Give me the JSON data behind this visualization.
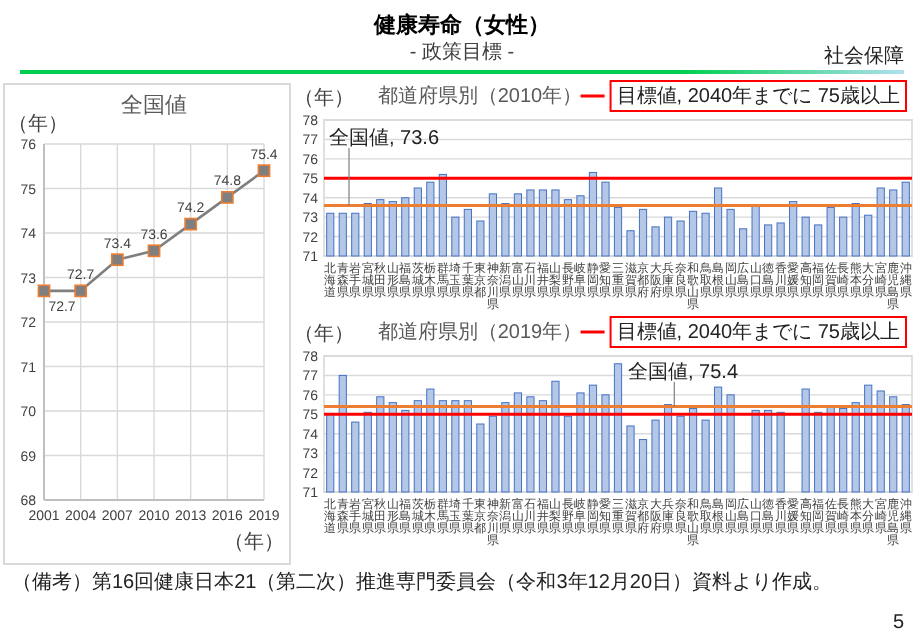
{
  "chart_data": [
    {
      "type": "other",
      "title": "健康寿命（女性）",
      "subtitle": "- 政策目標 -",
      "annotations": [
        "社会保障",
        "（備考）第16回健康日本21（第二次）推進専門委員会（令和3年12月20日）資料より作成。",
        "5"
      ]
    },
    {
      "type": "line",
      "title": "全国値",
      "xlabel": "（年）",
      "ylabel": "（年）",
      "x": [
        2001,
        2004,
        2007,
        2010,
        2013,
        2016,
        2019
      ],
      "xlim": [
        2001,
        2019
      ],
      "xticks": [
        2001,
        2004,
        2007,
        2010,
        2013,
        2016,
        2019
      ],
      "ylim": [
        68,
        76
      ],
      "yticks": [
        68,
        69,
        70,
        71,
        72,
        73,
        74,
        75,
        76
      ],
      "grid": true,
      "marker": "square",
      "data_labels": true,
      "series": [
        {
          "color": "#7f7f7f",
          "values": [
            72.7,
            72.7,
            73.4,
            73.6,
            74.2,
            74.8,
            75.4
          ]
        }
      ]
    },
    {
      "type": "bar",
      "title": "都道府県別（2010年）",
      "ylabel": "（年）",
      "categories": [
        "北海道",
        "青森県",
        "岩手県",
        "宮城県",
        "秋田県",
        "山形県",
        "福島県",
        "茨城県",
        "栃木県",
        "群馬県",
        "埼玉県",
        "千葉県",
        "東京都",
        "神奈川県",
        "新潟県",
        "富山県",
        "石川県",
        "福井県",
        "山梨県",
        "長野県",
        "岐阜県",
        "静岡県",
        "愛知県",
        "三重県",
        "滋賀県",
        "京都府",
        "大阪府",
        "兵庫県",
        "奈良県",
        "和歌山県",
        "鳥取県",
        "島根県",
        "岡山県",
        "広島県",
        "山口県",
        "徳島県",
        "香川県",
        "愛媛県",
        "高知県",
        "福岡県",
        "佐賀県",
        "長崎県",
        "熊本県",
        "大分県",
        "宮崎県",
        "鹿児島県",
        "沖縄県"
      ],
      "ylim": [
        71,
        78
      ],
      "yticks": [
        71,
        72,
        73,
        74,
        75,
        76,
        77,
        78
      ],
      "grid": "y",
      "series": [
        {
          "color": "#b4c7e7",
          "values": [
            73.2,
            73.2,
            73.2,
            73.7,
            73.9,
            73.8,
            74.0,
            74.5,
            74.8,
            75.2,
            73.0,
            73.4,
            72.8,
            74.2,
            73.7,
            74.2,
            74.4,
            74.4,
            74.4,
            73.9,
            74.1,
            75.3,
            74.8,
            73.5,
            72.3,
            73.4,
            72.5,
            73.0,
            72.8,
            73.3,
            73.2,
            74.5,
            73.4,
            72.4,
            73.6,
            72.6,
            72.7,
            73.8,
            73.0,
            72.6,
            73.5,
            73.0,
            73.7,
            73.1,
            74.5,
            74.4,
            74.8
          ]
        }
      ],
      "ref_lines": [
        {
          "axis": "y",
          "value": 75,
          "label": "目標値, 2040年までに 75歳以上",
          "color": "#ff0000"
        },
        {
          "axis": "y",
          "value": 73.6,
          "label": "全国値, 73.6",
          "color": "#ed7d31"
        }
      ]
    },
    {
      "type": "bar",
      "title": "都道府県別（2019年）",
      "ylabel": "（年）",
      "categories": [
        "北海道",
        "青森県",
        "岩手県",
        "宮城県",
        "秋田県",
        "山形県",
        "福島県",
        "茨城県",
        "栃木県",
        "群馬県",
        "埼玉県",
        "千葉県",
        "東京都",
        "神奈川県",
        "新潟県",
        "富山県",
        "石川県",
        "福井県",
        "山梨県",
        "長野県",
        "岐阜県",
        "静岡県",
        "愛知県",
        "三重県",
        "滋賀県",
        "京都府",
        "大阪府",
        "兵庫県",
        "奈良県",
        "和歌山県",
        "鳥取県",
        "島根県",
        "岡山県",
        "広島県",
        "山口県",
        "徳島県",
        "香川県",
        "愛媛県",
        "高知県",
        "福岡県",
        "佐賀県",
        "長崎県",
        "熊本県",
        "大分県",
        "宮崎県",
        "鹿児島県",
        "沖縄県"
      ],
      "ylim": [
        71,
        78
      ],
      "yticks": [
        71,
        72,
        73,
        74,
        75,
        76,
        77,
        78
      ],
      "grid": "y",
      "series": [
        {
          "color": "#b4c7e7",
          "values": [
            75.0,
            77.0,
            74.6,
            75.1,
            75.9,
            75.6,
            75.2,
            75.7,
            76.3,
            75.7,
            75.7,
            75.7,
            74.5,
            74.9,
            75.6,
            76.1,
            75.9,
            75.7,
            76.7,
            74.9,
            76.1,
            76.5,
            76.0,
            77.6,
            74.4,
            73.7,
            74.7,
            75.5,
            74.9,
            75.3,
            74.7,
            76.4,
            76.0,
            null,
            75.2,
            75.2,
            75.1,
            null,
            76.3,
            75.1,
            75.4,
            75.3,
            75.6,
            76.5,
            76.2,
            75.9,
            75.5
          ]
        }
      ],
      "ref_lines": [
        {
          "axis": "y",
          "value": 75,
          "label": "目標値, 2040年までに 75歳以上",
          "color": "#ff0000"
        },
        {
          "axis": "y",
          "value": 75.4,
          "label": "全国値, 75.4",
          "color": "#ed7d31"
        }
      ]
    }
  ]
}
